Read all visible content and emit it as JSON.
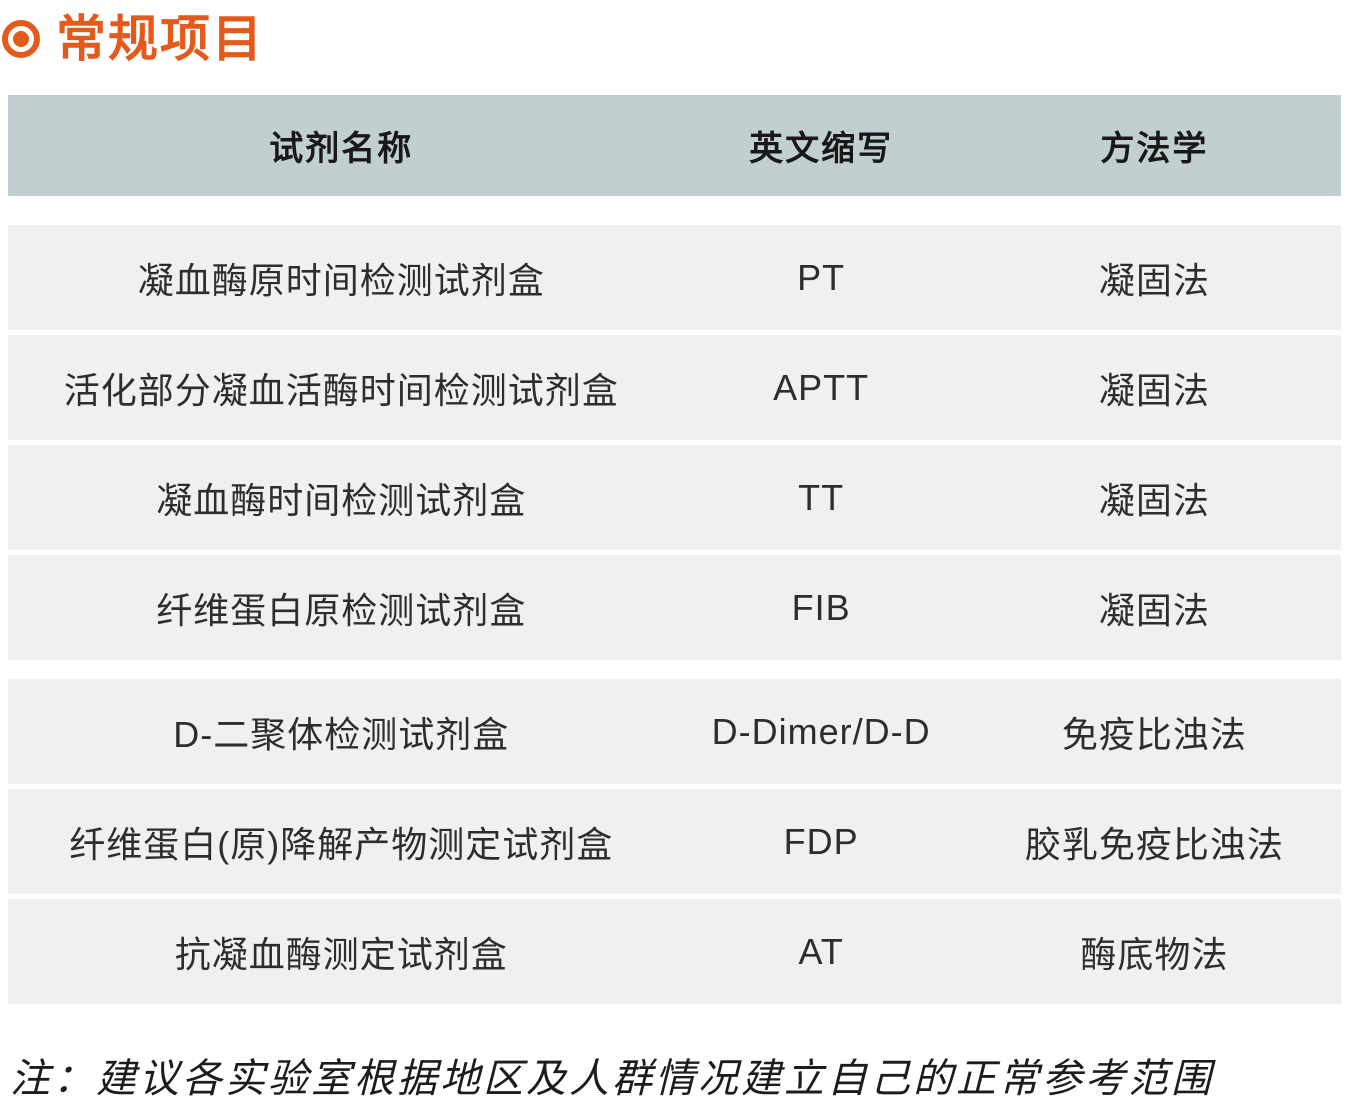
{
  "page": {
    "title": "常规项目",
    "note": "注：建议各实验室根据地区及人群情况建立自己的正常参考范围"
  },
  "colors": {
    "accent_orange": "#e45a1d",
    "header_background": "#c1cfd0",
    "row_background": "#f0f0ef"
  },
  "icons": {
    "title_bullet": "bullseye-icon"
  },
  "table": {
    "headers": [
      "试剂名称",
      "英文缩写",
      "方法学"
    ],
    "groups": [
      {
        "rows": [
          {
            "name": "凝血酶原时间检测试剂盒",
            "abbr": "PT",
            "method": "凝固法"
          },
          {
            "name": "活化部分凝血活酶时间检测试剂盒",
            "abbr": "APTT",
            "method": "凝固法"
          },
          {
            "name": "凝血酶时间检测试剂盒",
            "abbr": "TT",
            "method": "凝固法"
          },
          {
            "name": "纤维蛋白原检测试剂盒",
            "abbr": "FIB",
            "method": "凝固法"
          }
        ]
      },
      {
        "rows": [
          {
            "name": "D-二聚体检测试剂盒",
            "abbr": "D-Dimer/D-D",
            "method": "免疫比浊法"
          },
          {
            "name": "纤维蛋白(原)降解产物测定试剂盒",
            "abbr": "FDP",
            "method": "胶乳免疫比浊法"
          },
          {
            "name": "抗凝血酶测定试剂盒",
            "abbr": "AT",
            "method": "酶底物法"
          }
        ]
      }
    ]
  }
}
